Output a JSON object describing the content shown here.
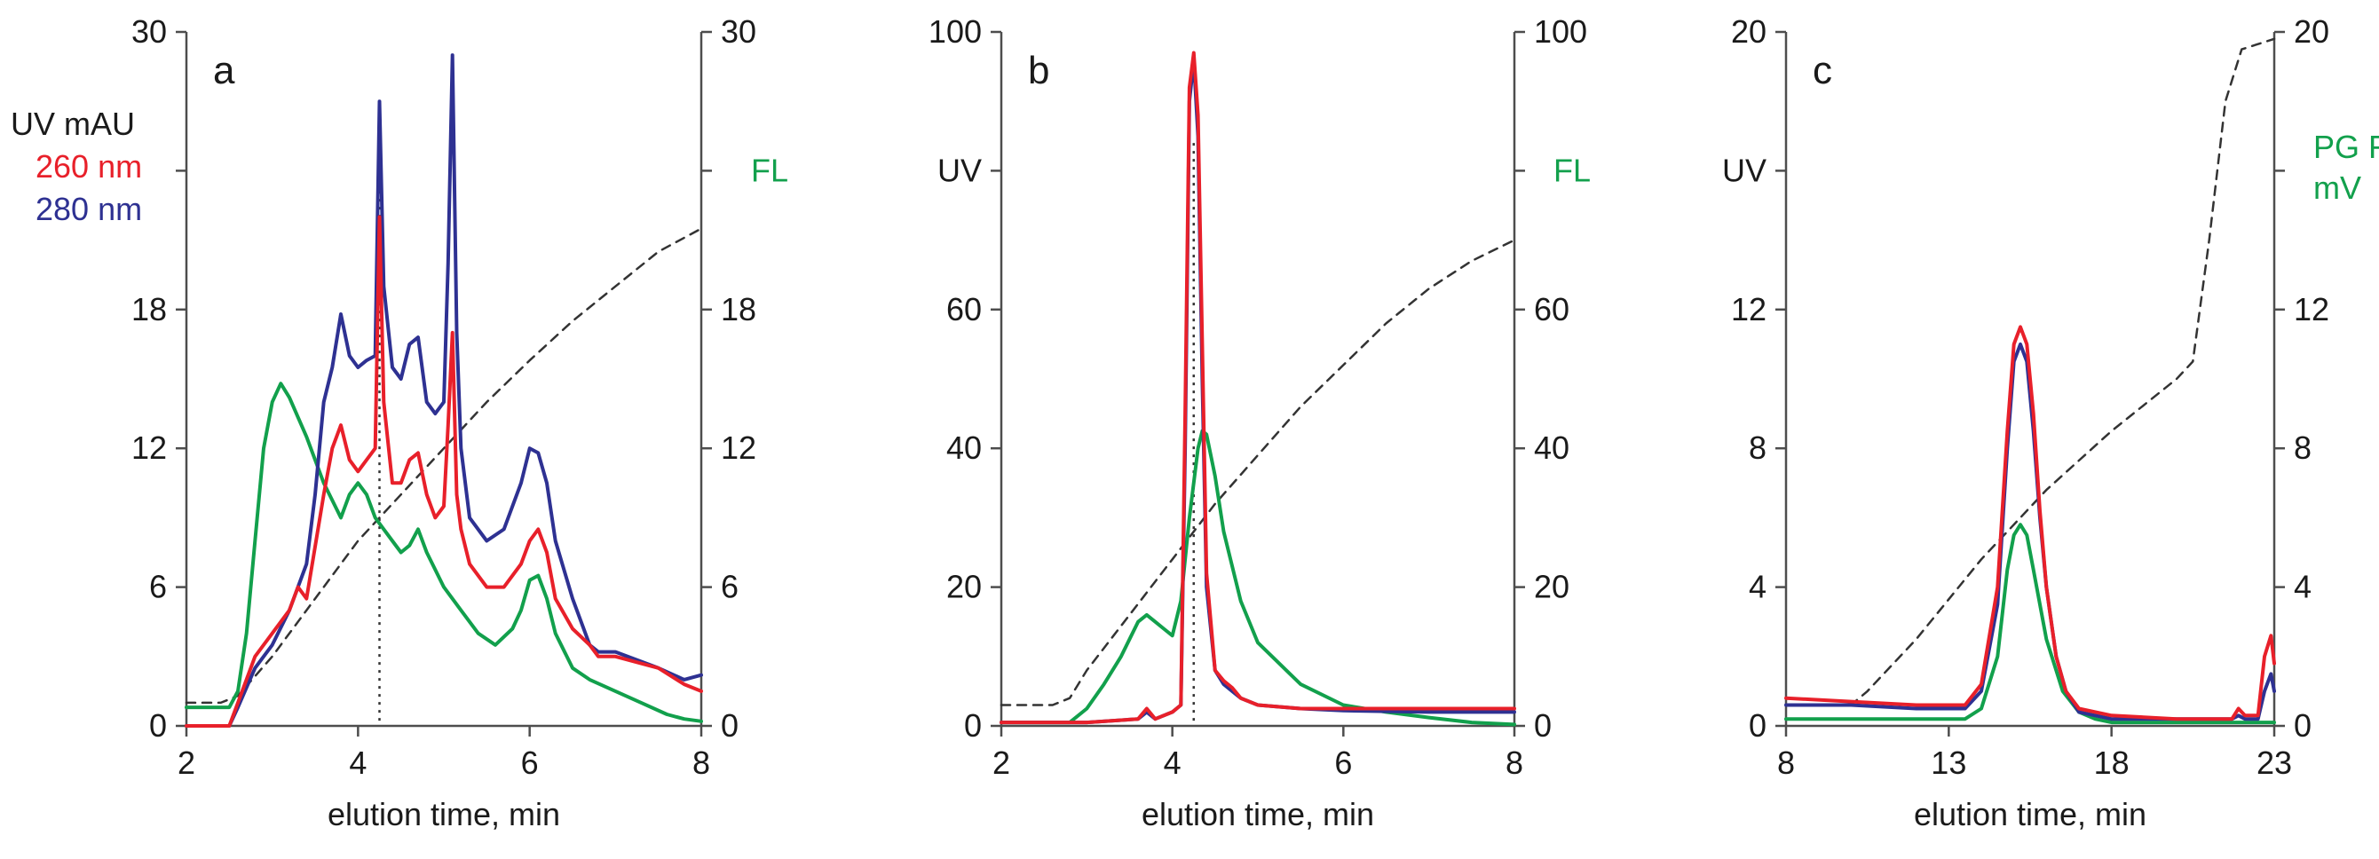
{
  "colors": {
    "uv260": "#e8202a",
    "uv280": "#2e3192",
    "fl": "#12a04c",
    "gradient": "#333333",
    "axis": "#4d4d4d",
    "text": "#1a1a1a"
  },
  "chart_data": [
    {
      "type": "line",
      "panel_label": "a",
      "xlabel": "elution time, min",
      "xlim": [
        2,
        8
      ],
      "xticks": [
        2,
        4,
        6,
        8
      ],
      "ylim": [
        0,
        30
      ],
      "yticks": [
        0,
        6,
        12,
        18,
        24,
        30
      ],
      "left_ticks_shown": [
        0,
        6,
        12,
        18,
        30
      ],
      "right_ticks_shown": [
        0,
        6,
        12,
        18,
        30
      ],
      "left_label": [
        "UV mAU",
        "260 nm",
        "280 nm"
      ],
      "right_label": [
        "FL"
      ],
      "marker_x": 4.25,
      "series": [
        {
          "name": "UV 280 nm",
          "color_key": "uv280",
          "x": [
            2.0,
            2.5,
            2.6,
            2.8,
            3.0,
            3.2,
            3.4,
            3.5,
            3.6,
            3.7,
            3.8,
            3.9,
            4.0,
            4.1,
            4.2,
            4.25,
            4.3,
            4.4,
            4.5,
            4.6,
            4.7,
            4.8,
            4.9,
            5.0,
            5.05,
            5.1,
            5.15,
            5.2,
            5.3,
            5.5,
            5.7,
            5.9,
            6.0,
            6.1,
            6.2,
            6.3,
            6.5,
            6.7,
            6.8,
            7.0,
            7.5,
            7.8,
            8.0
          ],
          "y": [
            0,
            0,
            0.8,
            2.5,
            3.5,
            5.0,
            7.0,
            10.0,
            14.0,
            15.5,
            17.8,
            16.0,
            15.5,
            15.8,
            16.0,
            27.0,
            19.0,
            15.5,
            15.0,
            16.5,
            16.8,
            14.0,
            13.5,
            14.0,
            20.0,
            29.0,
            17.0,
            12.0,
            9.0,
            8.0,
            8.5,
            10.5,
            12.0,
            11.8,
            10.5,
            8.0,
            5.5,
            3.5,
            3.2,
            3.2,
            2.5,
            2.0,
            2.2
          ]
        },
        {
          "name": "UV 260 nm",
          "color_key": "uv260",
          "x": [
            2.0,
            2.5,
            2.6,
            2.8,
            3.0,
            3.2,
            3.3,
            3.4,
            3.6,
            3.7,
            3.8,
            3.9,
            4.0,
            4.1,
            4.2,
            4.25,
            4.3,
            4.4,
            4.5,
            4.6,
            4.7,
            4.8,
            4.9,
            5.0,
            5.05,
            5.1,
            5.15,
            5.2,
            5.3,
            5.5,
            5.7,
            5.9,
            6.0,
            6.1,
            6.2,
            6.3,
            6.5,
            6.7,
            6.8,
            7.0,
            7.5,
            7.8,
            8.0
          ],
          "y": [
            0,
            0,
            1.0,
            3.0,
            4.0,
            5.0,
            6.0,
            5.5,
            10.0,
            12.0,
            13.0,
            11.5,
            11.0,
            11.5,
            12.0,
            22.0,
            14.0,
            10.5,
            10.5,
            11.5,
            11.8,
            10.0,
            9.0,
            9.5,
            13.0,
            17.0,
            10.0,
            8.5,
            7.0,
            6.0,
            6.0,
            7.0,
            8.0,
            8.5,
            7.5,
            5.5,
            4.2,
            3.5,
            3.0,
            3.0,
            2.5,
            1.8,
            1.5
          ]
        },
        {
          "name": "FL",
          "color_key": "fl",
          "x": [
            2.0,
            2.5,
            2.6,
            2.7,
            2.8,
            2.9,
            3.0,
            3.1,
            3.2,
            3.4,
            3.6,
            3.8,
            3.9,
            4.0,
            4.1,
            4.2,
            4.3,
            4.4,
            4.5,
            4.6,
            4.7,
            4.8,
            5.0,
            5.2,
            5.4,
            5.6,
            5.8,
            5.9,
            6.0,
            6.1,
            6.2,
            6.3,
            6.5,
            6.7,
            7.0,
            7.3,
            7.6,
            7.8,
            8.0
          ],
          "y": [
            0.8,
            0.8,
            1.5,
            4.0,
            8.0,
            12.0,
            14.0,
            14.8,
            14.2,
            12.5,
            10.5,
            9.0,
            10.0,
            10.5,
            10.0,
            9.0,
            8.5,
            8.0,
            7.5,
            7.8,
            8.5,
            7.5,
            6.0,
            5.0,
            4.0,
            3.5,
            4.2,
            5.0,
            6.3,
            6.5,
            5.5,
            4.0,
            2.5,
            2.0,
            1.5,
            1.0,
            0.5,
            0.3,
            0.2
          ]
        },
        {
          "name": "gradient",
          "color_key": "gradient",
          "dashed": true,
          "x": [
            2.0,
            2.4,
            2.6,
            3.0,
            3.5,
            4.0,
            4.5,
            5.0,
            5.5,
            6.0,
            6.5,
            7.0,
            7.5,
            8.0
          ],
          "y": [
            1.0,
            1.0,
            1.3,
            3.0,
            5.5,
            8.0,
            10.0,
            12.0,
            14.0,
            15.8,
            17.5,
            19.0,
            20.5,
            21.5
          ]
        }
      ]
    },
    {
      "type": "line",
      "panel_label": "b",
      "xlabel": "elution time, min",
      "xlim": [
        2,
        8
      ],
      "xticks": [
        2,
        4,
        6,
        8
      ],
      "ylim": [
        0,
        100
      ],
      "yticks": [
        0,
        20,
        40,
        60,
        80,
        100
      ],
      "left_ticks_shown": [
        0,
        20,
        40,
        60,
        100
      ],
      "right_ticks_shown": [
        0,
        20,
        40,
        60,
        100
      ],
      "left_label": [
        "UV"
      ],
      "right_label": [
        "FL"
      ],
      "marker_x": 4.25,
      "series": [
        {
          "name": "UV 280 nm",
          "color_key": "uv280",
          "x": [
            2.0,
            3.0,
            3.6,
            3.7,
            3.8,
            4.0,
            4.1,
            4.15,
            4.2,
            4.25,
            4.3,
            4.35,
            4.4,
            4.5,
            4.6,
            4.7,
            4.8,
            5.0,
            5.5,
            6.0,
            7.0,
            8.0
          ],
          "y": [
            0.5,
            0.5,
            1.0,
            2.0,
            1.0,
            2.0,
            3.0,
            40.0,
            90.0,
            96.0,
            85.0,
            50.0,
            20.0,
            8.0,
            6.0,
            5.0,
            4.0,
            3.0,
            2.5,
            2.2,
            2.0,
            2.0
          ]
        },
        {
          "name": "UV 260 nm",
          "color_key": "uv260",
          "x": [
            2.0,
            3.0,
            3.6,
            3.7,
            3.8,
            4.0,
            4.1,
            4.15,
            4.2,
            4.25,
            4.3,
            4.35,
            4.4,
            4.5,
            4.6,
            4.7,
            4.8,
            5.0,
            5.5,
            6.0,
            7.0,
            8.0
          ],
          "y": [
            0.5,
            0.5,
            1.0,
            2.5,
            1.0,
            2.0,
            3.0,
            45.0,
            92.0,
            97.0,
            88.0,
            55.0,
            22.0,
            8.0,
            6.5,
            5.5,
            4.0,
            3.0,
            2.5,
            2.5,
            2.5,
            2.5
          ]
        },
        {
          "name": "FL",
          "color_key": "fl",
          "x": [
            2.0,
            2.8,
            3.0,
            3.2,
            3.4,
            3.6,
            3.7,
            3.8,
            3.9,
            4.0,
            4.1,
            4.2,
            4.3,
            4.35,
            4.4,
            4.5,
            4.6,
            4.8,
            5.0,
            5.5,
            6.0,
            6.5,
            7.0,
            7.5,
            8.0
          ],
          "y": [
            0.5,
            0.5,
            2.5,
            6.0,
            10.0,
            15.0,
            16.0,
            15.0,
            14.0,
            13.0,
            18.0,
            30.0,
            40.0,
            42.5,
            42.0,
            36.0,
            28.0,
            18.0,
            12.0,
            6.0,
            3.0,
            2.0,
            1.2,
            0.5,
            0.2
          ]
        },
        {
          "name": "gradient",
          "color_key": "gradient",
          "dashed": true,
          "x": [
            2.0,
            2.6,
            2.8,
            3.0,
            3.5,
            4.0,
            4.5,
            5.0,
            5.5,
            6.0,
            6.5,
            7.0,
            7.5,
            8.0
          ],
          "y": [
            3.0,
            3.0,
            4.0,
            8.0,
            16.0,
            24.0,
            32.0,
            39.0,
            46.0,
            52.0,
            58.0,
            63.0,
            67.0,
            70.0
          ]
        }
      ]
    },
    {
      "type": "line",
      "panel_label": "c",
      "xlabel": "elution time, min",
      "xlim": [
        8,
        23
      ],
      "xticks": [
        8,
        13,
        18,
        23
      ],
      "ylim": [
        0,
        20
      ],
      "yticks": [
        0,
        4,
        8,
        12,
        16,
        20
      ],
      "left_ticks_shown": [
        0,
        4,
        8,
        12,
        20
      ],
      "right_ticks_shown": [
        0,
        4,
        8,
        12,
        20
      ],
      "left_label": [
        "UV"
      ],
      "right_label": [
        "PG FL",
        "mV"
      ],
      "series": [
        {
          "name": "UV 280 nm",
          "color_key": "uv280",
          "x": [
            8.0,
            10.0,
            12.0,
            13.5,
            14.0,
            14.5,
            14.8,
            15.0,
            15.2,
            15.4,
            15.6,
            15.8,
            16.0,
            16.3,
            16.6,
            17.0,
            18.0,
            20.0,
            21.7,
            21.9,
            22.1,
            22.5,
            22.7,
            22.9,
            23.0
          ],
          "y": [
            0.6,
            0.6,
            0.5,
            0.5,
            1.0,
            3.5,
            8.0,
            10.5,
            11.0,
            10.5,
            8.5,
            6.0,
            4.0,
            2.0,
            1.0,
            0.4,
            0.2,
            0.2,
            0.2,
            0.3,
            0.2,
            0.2,
            1.0,
            1.5,
            1.0
          ]
        },
        {
          "name": "UV 260 nm",
          "color_key": "uv260",
          "x": [
            8.0,
            10.0,
            12.0,
            13.5,
            14.0,
            14.5,
            14.8,
            15.0,
            15.2,
            15.4,
            15.6,
            15.8,
            16.0,
            16.3,
            16.6,
            17.0,
            18.0,
            20.0,
            21.7,
            21.9,
            22.1,
            22.5,
            22.7,
            22.9,
            23.0
          ],
          "y": [
            0.8,
            0.7,
            0.6,
            0.6,
            1.2,
            4.0,
            8.5,
            11.0,
            11.5,
            11.0,
            9.0,
            6.2,
            4.0,
            2.0,
            1.0,
            0.5,
            0.3,
            0.2,
            0.2,
            0.5,
            0.3,
            0.3,
            2.0,
            2.6,
            1.8
          ]
        },
        {
          "name": "FL",
          "color_key": "fl",
          "x": [
            8.0,
            13.5,
            14.0,
            14.5,
            14.8,
            15.0,
            15.2,
            15.4,
            15.6,
            16.0,
            16.5,
            17.0,
            17.5,
            18.0,
            23.0
          ],
          "y": [
            0.2,
            0.2,
            0.5,
            2.0,
            4.5,
            5.5,
            5.8,
            5.5,
            4.5,
            2.5,
            1.0,
            0.4,
            0.2,
            0.1,
            0.1
          ]
        },
        {
          "name": "gradient",
          "color_key": "gradient",
          "dashed": true,
          "x": [
            8.0,
            10.0,
            10.5,
            12.0,
            14.0,
            16.0,
            18.0,
            20.0,
            20.5,
            21.0,
            21.5,
            22.0,
            23.0
          ],
          "y": [
            0.6,
            0.6,
            1.0,
            2.5,
            4.8,
            6.8,
            8.5,
            10.0,
            10.5,
            14.0,
            18.0,
            19.5,
            19.8
          ]
        }
      ]
    }
  ]
}
